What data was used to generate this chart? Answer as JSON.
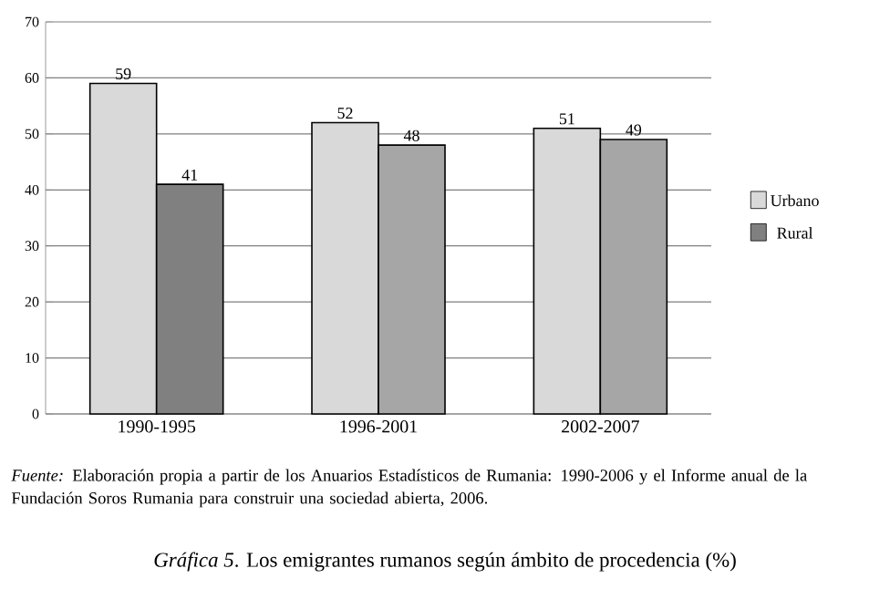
{
  "chart_data": {
    "type": "bar",
    "title": "*Gráfica 5*. Los emigrantes rumanos según ámbito de procedencia (%)",
    "categories": [
      "1990-1995",
      "1996-2001",
      "2002-2007"
    ],
    "series": [
      {
        "name": "Urbano",
        "color": "#d9d9d9",
        "values": [
          59,
          52,
          51
        ]
      },
      {
        "name": "Rural",
        "color": "#808080",
        "colors": [
          "#808080",
          "#a6a6a6",
          "#a6a6a6"
        ],
        "values": [
          41,
          48,
          49
        ]
      }
    ],
    "ylim": [
      0,
      70
    ],
    "yticks": [
      0,
      10,
      20,
      30,
      40,
      50,
      60,
      70
    ],
    "grid": "y",
    "legend": "right",
    "data_labels": true,
    "annotations": [
      "*Fuente:* Elaboración propia a partir de los Anuarios Estadísticos de Rumania: 1990-2006 y el Informe anual de la Fundación Soros Rumania para construir una sociedad abierta, 2006."
    ]
  }
}
